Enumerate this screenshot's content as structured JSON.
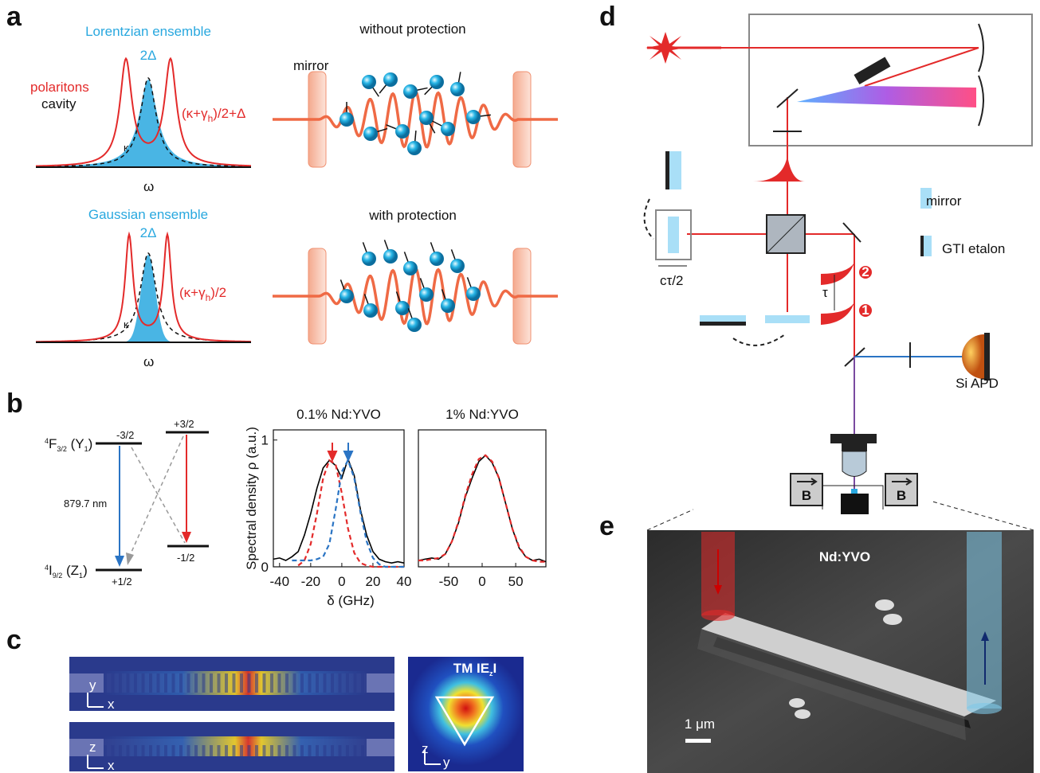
{
  "panel_a": {
    "label": "a",
    "top": {
      "ensemble": "Lorentzian ensemble",
      "width": "2Δ",
      "polaritons": "polaritons",
      "cavity": "cavity",
      "splitting": [
        "(κ+γ",
        "h",
        ")/2+Δ"
      ],
      "kappa": "κ",
      "omega": "ω",
      "scheme": "without protection",
      "mirror": "mirror"
    },
    "bottom": {
      "ensemble": "Gaussian ensemble",
      "width": "2Δ",
      "splitting": [
        "(κ+γ",
        "h",
        ")/2"
      ],
      "kappa": "κ",
      "omega": "ω",
      "scheme": "with protection"
    }
  },
  "panel_b": {
    "label": "b",
    "upper_level": [
      "4",
      "F",
      "3/2",
      " (Y",
      "1",
      ")"
    ],
    "lower_level": [
      "4",
      "I",
      "9/2",
      " (Z",
      "1",
      ")"
    ],
    "spins": [
      "-3/2",
      "+3/2",
      "-1/2",
      "+1/2"
    ],
    "wavelength": "879.7 nm"
  },
  "chart_data": [
    {
      "type": "line",
      "title": "0.1% Nd:YVO",
      "ylabel": "Spectral density ρ (a.u.)",
      "xlabel": "δ (GHz)",
      "x": [
        -44,
        -40,
        -36,
        -32,
        -28,
        -24,
        -20,
        -16,
        -12,
        -8,
        -4,
        0,
        4,
        8,
        12,
        16,
        20,
        24,
        28,
        32,
        36,
        40
      ],
      "series": [
        {
          "color": "#000000",
          "values": [
            0.06,
            0.07,
            0.05,
            0.08,
            0.12,
            0.25,
            0.42,
            0.62,
            0.78,
            0.84,
            0.8,
            0.7,
            0.85,
            0.72,
            0.45,
            0.25,
            0.12,
            0.06,
            0.04,
            0.03,
            0.04,
            0.03
          ]
        },
        {
          "color": "#e32a2a",
          "values": [
            null,
            null,
            null,
            null,
            0.01,
            0.05,
            0.18,
            0.42,
            0.7,
            0.84,
            0.81,
            0.58,
            0.3,
            0.11,
            0.03,
            0.01,
            0.0,
            0.0,
            0.0,
            0.0,
            0.0,
            0.0
          ]
        },
        {
          "color": "#2a74c4",
          "values": [
            null,
            null,
            null,
            0.05,
            0.05,
            0.05,
            0.05,
            0.06,
            0.08,
            0.18,
            0.45,
            0.75,
            0.84,
            0.7,
            0.43,
            0.2,
            0.07,
            0.02,
            0.0,
            0.0,
            0.0,
            0.0
          ]
        }
      ],
      "xlim": [
        -44,
        40
      ],
      "ylim": [
        0,
        1.08
      ],
      "xticks": [
        -40,
        -20,
        0,
        20,
        40
      ],
      "yticks": [
        0,
        1
      ]
    },
    {
      "type": "line",
      "title": "1% Nd:YVO",
      "x": [
        -95,
        -85,
        -75,
        -65,
        -55,
        -45,
        -35,
        -25,
        -15,
        -5,
        5,
        15,
        25,
        35,
        45,
        55,
        65,
        75,
        85,
        95
      ],
      "series": [
        {
          "color": "#000000",
          "values": [
            0.05,
            0.06,
            0.07,
            0.06,
            0.1,
            0.2,
            0.35,
            0.55,
            0.7,
            0.83,
            0.88,
            0.82,
            0.7,
            0.5,
            0.3,
            0.15,
            0.08,
            0.05,
            0.06,
            0.04
          ]
        },
        {
          "color": "#e32a2a",
          "values": [
            0.05,
            0.05,
            0.06,
            0.07,
            0.1,
            0.2,
            0.36,
            0.56,
            0.73,
            0.85,
            0.88,
            0.83,
            0.7,
            0.5,
            0.3,
            0.16,
            0.08,
            0.05,
            0.04,
            0.04
          ]
        }
      ],
      "xlim": [
        -95,
        95
      ],
      "ylim": [
        0,
        1.08
      ],
      "xticks": [
        -50,
        0,
        50
      ]
    }
  ],
  "panel_c": {
    "label": "c",
    "field": [
      "TM  IE",
      "z",
      "I"
    ],
    "axes": [
      [
        "y",
        "x"
      ],
      [
        "z",
        "x"
      ],
      [
        "z",
        "y"
      ]
    ]
  },
  "panel_d": {
    "label": "d",
    "legend": [
      "mirror",
      "GTI etalon"
    ],
    "delay": "cτ/2",
    "tau": "τ",
    "pulses": [
      "2",
      "1"
    ],
    "detector": "Si APD",
    "field": [
      "B",
      "B"
    ]
  },
  "panel_e": {
    "label": "e",
    "material": "Nd:YVO",
    "scale": "1 μm"
  }
}
